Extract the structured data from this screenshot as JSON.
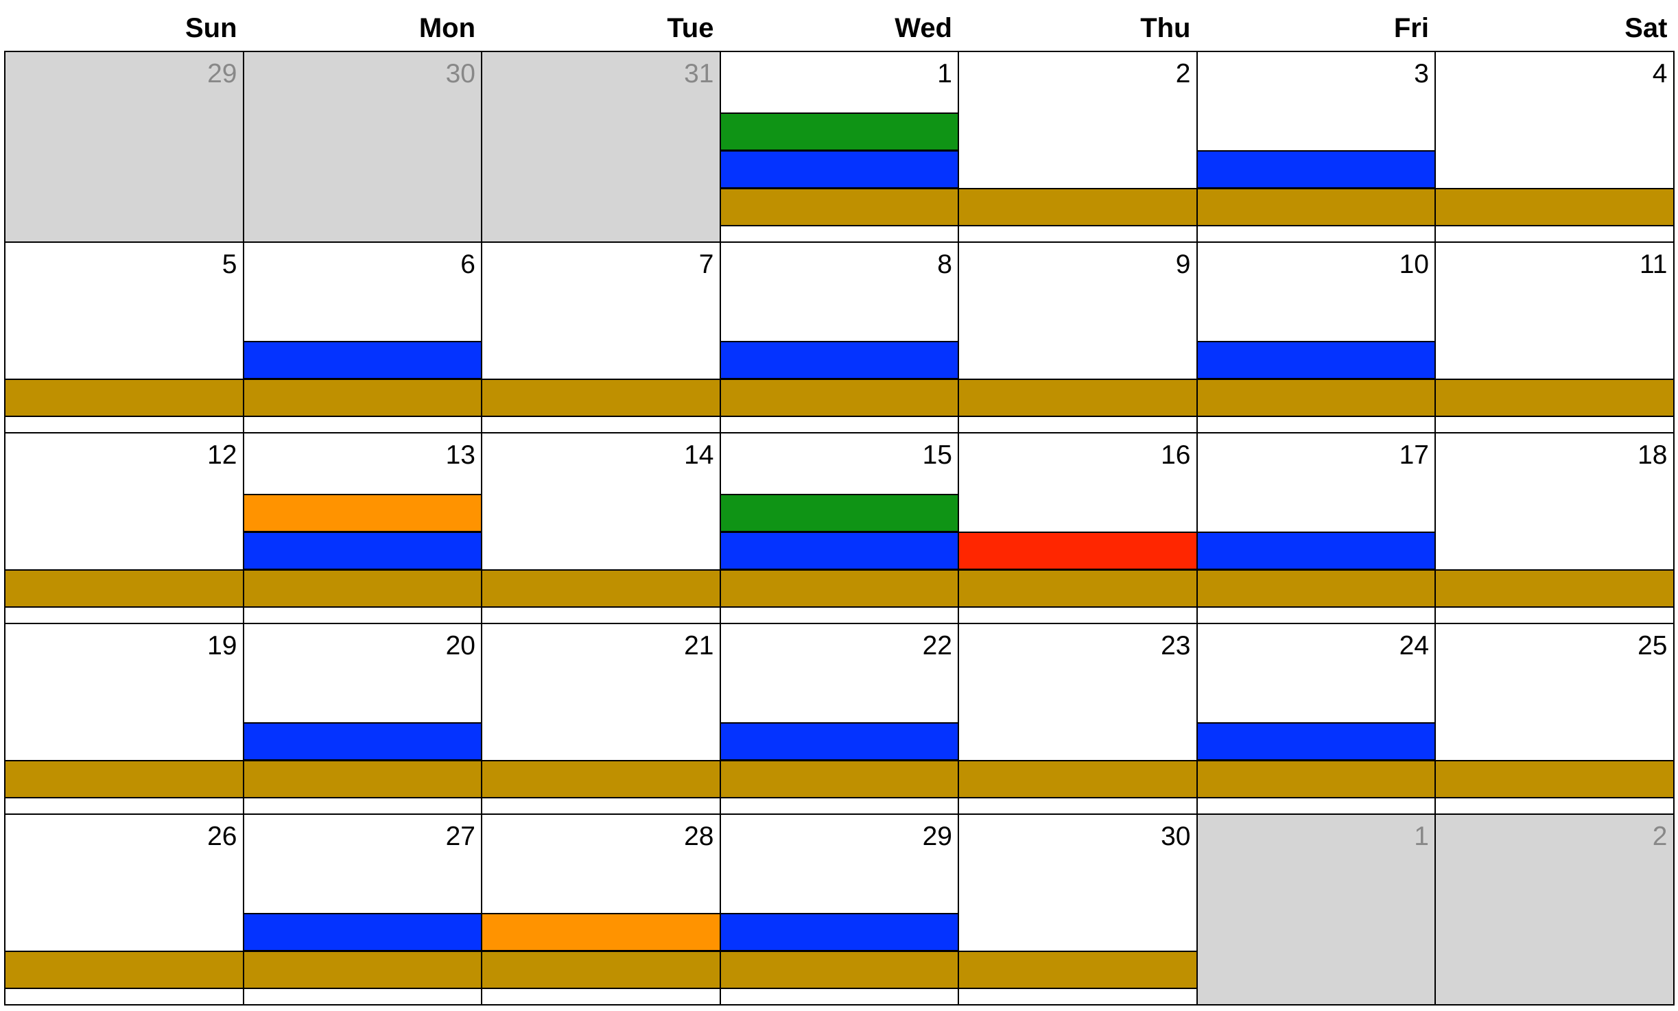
{
  "calendar": {
    "weekdays": [
      "Sun",
      "Mon",
      "Tue",
      "Wed",
      "Thu",
      "Fri",
      "Sat"
    ],
    "weeks": [
      [
        {
          "day": "29",
          "current_month": false,
          "events": []
        },
        {
          "day": "30",
          "current_month": false,
          "events": []
        },
        {
          "day": "31",
          "current_month": false,
          "events": []
        },
        {
          "day": "1",
          "current_month": true,
          "events": [
            {
              "color": "#0f9415",
              "slot": 0
            },
            {
              "color": "#0433ff",
              "slot": 1
            },
            {
              "color": "#bf9000",
              "slot": 2
            }
          ]
        },
        {
          "day": "2",
          "current_month": true,
          "events": [
            {
              "color": "#bf9000",
              "slot": 2
            }
          ]
        },
        {
          "day": "3",
          "current_month": true,
          "events": [
            {
              "color": "#0433ff",
              "slot": 1
            },
            {
              "color": "#bf9000",
              "slot": 2
            }
          ]
        },
        {
          "day": "4",
          "current_month": true,
          "events": [
            {
              "color": "#bf9000",
              "slot": 2
            }
          ]
        }
      ],
      [
        {
          "day": "5",
          "current_month": true,
          "events": [
            {
              "color": "#bf9000",
              "slot": 2
            }
          ]
        },
        {
          "day": "6",
          "current_month": true,
          "events": [
            {
              "color": "#0433ff",
              "slot": 1
            },
            {
              "color": "#bf9000",
              "slot": 2
            }
          ]
        },
        {
          "day": "7",
          "current_month": true,
          "events": [
            {
              "color": "#bf9000",
              "slot": 2
            }
          ]
        },
        {
          "day": "8",
          "current_month": true,
          "events": [
            {
              "color": "#0433ff",
              "slot": 1
            },
            {
              "color": "#bf9000",
              "slot": 2
            }
          ]
        },
        {
          "day": "9",
          "current_month": true,
          "events": [
            {
              "color": "#bf9000",
              "slot": 2
            }
          ]
        },
        {
          "day": "10",
          "current_month": true,
          "events": [
            {
              "color": "#0433ff",
              "slot": 1
            },
            {
              "color": "#bf9000",
              "slot": 2
            }
          ]
        },
        {
          "day": "11",
          "current_month": true,
          "events": [
            {
              "color": "#bf9000",
              "slot": 2
            }
          ]
        }
      ],
      [
        {
          "day": "12",
          "current_month": true,
          "events": [
            {
              "color": "#bf9000",
              "slot": 2
            }
          ]
        },
        {
          "day": "13",
          "current_month": true,
          "events": [
            {
              "color": "#ff9300",
              "slot": 0
            },
            {
              "color": "#0433ff",
              "slot": 1
            },
            {
              "color": "#bf9000",
              "slot": 2
            }
          ]
        },
        {
          "day": "14",
          "current_month": true,
          "events": [
            {
              "color": "#bf9000",
              "slot": 2
            }
          ]
        },
        {
          "day": "15",
          "current_month": true,
          "events": [
            {
              "color": "#0f9415",
              "slot": 0
            },
            {
              "color": "#0433ff",
              "slot": 1
            },
            {
              "color": "#bf9000",
              "slot": 2
            }
          ]
        },
        {
          "day": "16",
          "current_month": true,
          "events": [
            {
              "color": "#ff2600",
              "slot": 1
            },
            {
              "color": "#bf9000",
              "slot": 2
            }
          ]
        },
        {
          "day": "17",
          "current_month": true,
          "events": [
            {
              "color": "#0433ff",
              "slot": 1
            },
            {
              "color": "#bf9000",
              "slot": 2
            }
          ]
        },
        {
          "day": "18",
          "current_month": true,
          "events": [
            {
              "color": "#bf9000",
              "slot": 2
            }
          ]
        }
      ],
      [
        {
          "day": "19",
          "current_month": true,
          "events": [
            {
              "color": "#bf9000",
              "slot": 2
            }
          ]
        },
        {
          "day": "20",
          "current_month": true,
          "events": [
            {
              "color": "#0433ff",
              "slot": 1
            },
            {
              "color": "#bf9000",
              "slot": 2
            }
          ]
        },
        {
          "day": "21",
          "current_month": true,
          "events": [
            {
              "color": "#bf9000",
              "slot": 2
            }
          ]
        },
        {
          "day": "22",
          "current_month": true,
          "events": [
            {
              "color": "#0433ff",
              "slot": 1
            },
            {
              "color": "#bf9000",
              "slot": 2
            }
          ]
        },
        {
          "day": "23",
          "current_month": true,
          "events": [
            {
              "color": "#bf9000",
              "slot": 2
            }
          ]
        },
        {
          "day": "24",
          "current_month": true,
          "events": [
            {
              "color": "#0433ff",
              "slot": 1
            },
            {
              "color": "#bf9000",
              "slot": 2
            }
          ]
        },
        {
          "day": "25",
          "current_month": true,
          "events": [
            {
              "color": "#bf9000",
              "slot": 2
            }
          ]
        }
      ],
      [
        {
          "day": "26",
          "current_month": true,
          "events": [
            {
              "color": "#bf9000",
              "slot": 2
            }
          ]
        },
        {
          "day": "27",
          "current_month": true,
          "events": [
            {
              "color": "#0433ff",
              "slot": 1
            },
            {
              "color": "#bf9000",
              "slot": 2
            }
          ]
        },
        {
          "day": "28",
          "current_month": true,
          "events": [
            {
              "color": "#ff9300",
              "slot": 1
            },
            {
              "color": "#bf9000",
              "slot": 2
            }
          ]
        },
        {
          "day": "29",
          "current_month": true,
          "events": [
            {
              "color": "#0433ff",
              "slot": 1
            },
            {
              "color": "#bf9000",
              "slot": 2
            }
          ]
        },
        {
          "day": "30",
          "current_month": true,
          "events": [
            {
              "color": "#bf9000",
              "slot": 2
            }
          ]
        },
        {
          "day": "1",
          "current_month": false,
          "events": []
        },
        {
          "day": "2",
          "current_month": false,
          "events": []
        }
      ]
    ]
  }
}
